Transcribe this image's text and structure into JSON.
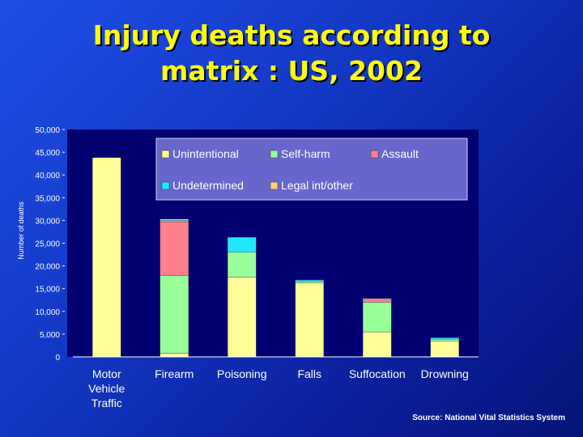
{
  "title_lines": [
    "Injury deaths according to",
    "matrix : US, 2002"
  ],
  "source": "Source: National Vital Statistics System",
  "colors": {
    "Unintentional": "#ffff99",
    "Self-harm": "#99ff99",
    "Assault": "#ff7f8f",
    "Undetermined": "#22e6ff",
    "Legal int/other": "#ffcc80"
  },
  "chart_data": {
    "type": "bar",
    "stacked": true,
    "title": "",
    "xlabel": "",
    "ylabel": "Number of deaths",
    "ylim": [
      0,
      50000
    ],
    "yticks": [
      0,
      5000,
      10000,
      15000,
      20000,
      25000,
      30000,
      35000,
      40000,
      45000,
      50000
    ],
    "ytick_labels": [
      "0",
      "5,000",
      "10,000",
      "15,000",
      "20,000",
      "25,000",
      "30,000",
      "35,000",
      "40,000",
      "45,000",
      "50,000"
    ],
    "categories": [
      [
        "Motor",
        "Vehicle",
        "Traffic"
      ],
      [
        "Firearm"
      ],
      [
        "Poisoning"
      ],
      [
        "Falls"
      ],
      [
        "Suffocation"
      ],
      [
        "Drowning"
      ]
    ],
    "series": [
      {
        "name": "Unintentional",
        "values": [
          43800,
          800,
          17500,
          16300,
          5500,
          3500
        ]
      },
      {
        "name": "Self-harm",
        "values": [
          0,
          17100,
          5500,
          300,
          6500,
          400
        ]
      },
      {
        "name": "Assault",
        "values": [
          0,
          11800,
          0,
          0,
          500,
          0
        ]
      },
      {
        "name": "Undetermined",
        "values": [
          0,
          300,
          3300,
          300,
          0,
          300
        ]
      },
      {
        "name": "Legal int/other",
        "values": [
          0,
          300,
          0,
          0,
          300,
          0
        ]
      }
    ],
    "legend": {
      "placement": "top-right",
      "rows": [
        [
          "Unintentional",
          "Self-harm",
          "Assault"
        ],
        [
          "Undetermined",
          "Legal int/other"
        ]
      ]
    },
    "grid": false
  }
}
